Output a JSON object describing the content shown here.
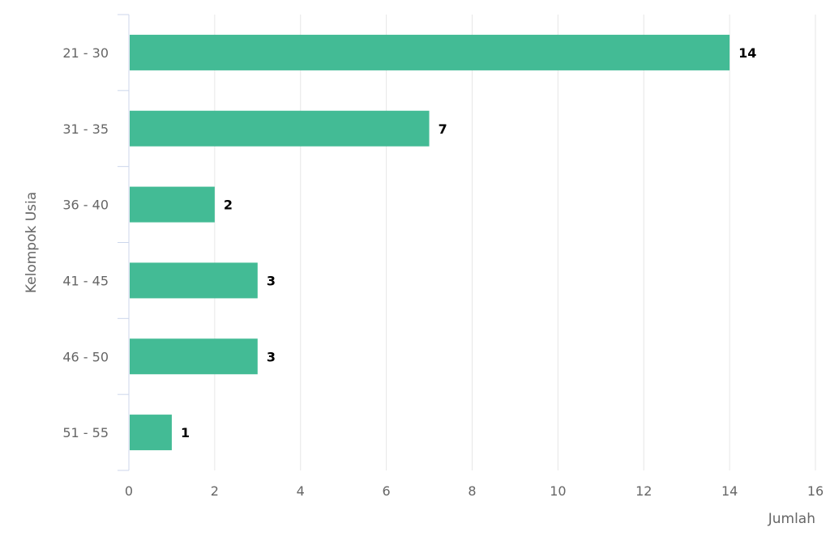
{
  "chart_data": {
    "type": "bar",
    "orientation": "horizontal",
    "categories": [
      "21 - 30",
      "31 - 35",
      "36 - 40",
      "41 - 45",
      "46 - 50",
      "51 - 55"
    ],
    "series": [
      {
        "values": [
          14,
          7,
          2,
          3,
          3,
          1
        ]
      }
    ],
    "data_labels": [
      "14",
      "7",
      "2",
      "3",
      "3",
      "1"
    ],
    "title": "",
    "xlabel": "Jumlah",
    "ylabel": "Kelompok Usia",
    "xlim": [
      0,
      16
    ],
    "xticks": [
      0,
      2,
      4,
      6,
      8,
      10,
      12,
      14,
      16
    ],
    "xtick_labels": [
      "0",
      "2",
      "4",
      "6",
      "8",
      "10",
      "12",
      "14",
      "16"
    ],
    "grid": true,
    "legend": "none",
    "colors": {
      "bar": "#43bb95",
      "grid": "#e6e6e6",
      "axis": "#ccd6eb"
    }
  }
}
